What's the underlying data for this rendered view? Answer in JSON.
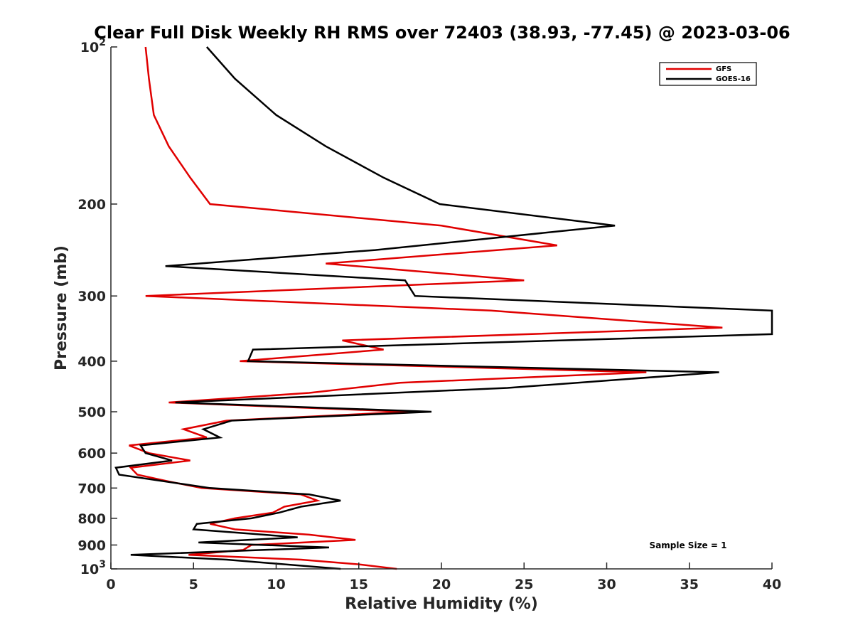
{
  "chart_data": {
    "type": "line",
    "title": "Clear Full Disk Weekly RH RMS over 72403 (38.93, -77.45) @ 2023-03-06",
    "xlabel": "Relative Humidity (%)",
    "ylabel": "Pressure (mb)",
    "xlim": [
      0,
      40
    ],
    "ylim": [
      100,
      1000
    ],
    "y_scale": "log",
    "y_reversed": true,
    "x_ticks": [
      "0",
      "5",
      "10",
      "15",
      "20",
      "25",
      "30",
      "35",
      "40"
    ],
    "y_ticks": [
      {
        "value": 100,
        "base": "10",
        "exp": "2"
      },
      {
        "value": 200,
        "label": "200"
      },
      {
        "value": 300,
        "label": "300"
      },
      {
        "value": 400,
        "label": "400"
      },
      {
        "value": 500,
        "label": "500"
      },
      {
        "value": 600,
        "label": "600"
      },
      {
        "value": 700,
        "label": "700"
      },
      {
        "value": 800,
        "label": "800"
      },
      {
        "value": 900,
        "label": "900"
      },
      {
        "value": 1000,
        "base": "10",
        "exp": "3"
      }
    ],
    "legend_position": "top-right",
    "annotation": "Sample Size = 1",
    "series": [
      {
        "name": "GFS",
        "color": "#e00000",
        "points": [
          [
            2.1,
            100
          ],
          [
            2.3,
            115
          ],
          [
            2.6,
            135
          ],
          [
            3.5,
            155
          ],
          [
            4.8,
            178
          ],
          [
            6.0,
            200
          ],
          [
            20.0,
            220
          ],
          [
            27.0,
            240
          ],
          [
            13.0,
            260
          ],
          [
            25.0,
            280
          ],
          [
            2.1,
            300
          ],
          [
            23.0,
            320
          ],
          [
            37.0,
            345
          ],
          [
            14.0,
            365
          ],
          [
            16.5,
            380
          ],
          [
            7.8,
            400
          ],
          [
            32.4,
            420
          ],
          [
            17.5,
            440
          ],
          [
            12.0,
            460
          ],
          [
            3.5,
            480
          ],
          [
            18.0,
            500
          ],
          [
            7.0,
            520
          ],
          [
            4.4,
            540
          ],
          [
            5.8,
            560
          ],
          [
            1.1,
            580
          ],
          [
            2.3,
            600
          ],
          [
            4.8,
            620
          ],
          [
            1.2,
            640
          ],
          [
            1.6,
            660
          ],
          [
            3.5,
            680
          ],
          [
            5.5,
            700
          ],
          [
            11.5,
            720
          ],
          [
            12.5,
            740
          ],
          [
            10.5,
            760
          ],
          [
            9.8,
            780
          ],
          [
            7.5,
            800
          ],
          [
            6.0,
            820
          ],
          [
            7.5,
            840
          ],
          [
            12.0,
            860
          ],
          [
            14.8,
            880
          ],
          [
            8.5,
            900
          ],
          [
            8.0,
            920
          ],
          [
            4.7,
            940
          ],
          [
            11.5,
            960
          ],
          [
            15.0,
            980
          ],
          [
            17.3,
            1000
          ]
        ]
      },
      {
        "name": "GOES-16",
        "color": "#000000",
        "points": [
          [
            5.8,
            100
          ],
          [
            7.5,
            115
          ],
          [
            10.0,
            135
          ],
          [
            13.0,
            155
          ],
          [
            16.5,
            178
          ],
          [
            19.9,
            200
          ],
          [
            30.5,
            220
          ],
          [
            16.0,
            245
          ],
          [
            3.3,
            263
          ],
          [
            17.8,
            280
          ],
          [
            18.4,
            300
          ],
          [
            40.0,
            320
          ],
          [
            40.0,
            355
          ],
          [
            8.6,
            380
          ],
          [
            8.3,
            400
          ],
          [
            36.8,
            420
          ],
          [
            24.0,
            450
          ],
          [
            3.9,
            480
          ],
          [
            19.4,
            500
          ],
          [
            7.3,
            520
          ],
          [
            5.6,
            540
          ],
          [
            6.6,
            560
          ],
          [
            1.8,
            580
          ],
          [
            2.1,
            600
          ],
          [
            3.7,
            620
          ],
          [
            0.3,
            640
          ],
          [
            0.5,
            660
          ],
          [
            6.0,
            700
          ],
          [
            12.0,
            720
          ],
          [
            13.9,
            740
          ],
          [
            11.5,
            760
          ],
          [
            10.2,
            780
          ],
          [
            8.5,
            800
          ],
          [
            5.2,
            820
          ],
          [
            5.0,
            840
          ],
          [
            11.3,
            870
          ],
          [
            5.3,
            890
          ],
          [
            13.2,
            910
          ],
          [
            1.2,
            940
          ],
          [
            7.0,
            960
          ],
          [
            13.9,
            1000
          ]
        ]
      }
    ]
  }
}
